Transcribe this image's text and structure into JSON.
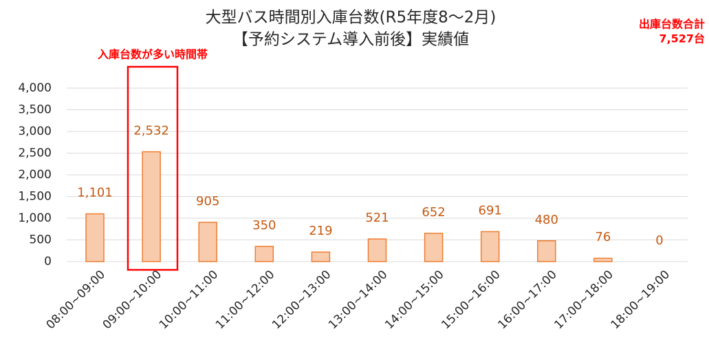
{
  "chart_data": {
    "type": "bar",
    "title": "大型バス時間別入庫台数(R5年度8～2月)",
    "subtitle": "【予約システム導入前後】実績値",
    "annotations": [
      "入庫台数が多い時間帯",
      "出庫台数合計",
      "7,527台"
    ],
    "categories": [
      "08:00~09:00",
      "09:00~10:00",
      "10:00~11:00",
      "11:00~12:00",
      "12:00~13:00",
      "13:00~14:00",
      "14:00~15:00",
      "15:00~16:00",
      "16:00~17:00",
      "17:00~18:00",
      "18:00~19:00"
    ],
    "values": [
      1101,
      2532,
      905,
      350,
      219,
      521,
      652,
      691,
      480,
      76,
      0
    ],
    "value_labels": [
      "1,101",
      "2,532",
      "905",
      "350",
      "219",
      "521",
      "652",
      "691",
      "480",
      "76",
      "0"
    ],
    "color": "#f8cbad",
    "edge_color": "#ed7d31",
    "ylim": [
      0,
      4000
    ],
    "yticks": [
      0,
      500,
      {
        "value": 1000,
        "label": "1,000"
      },
      {
        "value": 1500,
        "label": "1,500"
      },
      {
        "value": 2000,
        "label": "2,000"
      },
      {
        "value": 2500,
        "label": "2,500"
      },
      {
        "value": 3000,
        "label": "3,000"
      },
      {
        "value": 3500,
        "label": "3,500"
      },
      {
        "value": 4000,
        "label": "4,000"
      }
    ],
    "grid": true
  }
}
